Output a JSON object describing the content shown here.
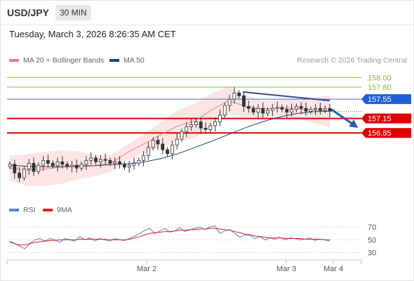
{
  "header": {
    "symbol": "USD/JPY",
    "timeframe": "30 MIN",
    "timestamp": "Tuesday, March 3, 2026 8:26:35 AM CET"
  },
  "legend_top": {
    "items": [
      {
        "label": "MA 20 + Bollinger Bands",
        "color": "#f08080"
      },
      {
        "label": "MA 50",
        "color": "#1f3f7a"
      }
    ],
    "credit": "Research © 2026 Trading Central"
  },
  "legend_bottom": {
    "items": [
      {
        "label": "RSI",
        "color": "#5b7fd6"
      },
      {
        "label": "9MA",
        "color": "#e02020"
      }
    ]
  },
  "colors": {
    "support": "#e00000",
    "resistance_blue": "#3b6fe0",
    "target_green": "#7dbb4a",
    "candle": "#333333",
    "band_fill": "#fde0e0",
    "trend": "#3a4a8a"
  },
  "chart_data": [
    {
      "type": "line",
      "title": "USD/JPY 30 MIN",
      "xlabel": "",
      "ylabel": "",
      "x_ticks": [
        "Mar 2",
        "Mar 3",
        "Mar 4"
      ],
      "ylim": [
        155.6,
        158.15
      ],
      "levels": [
        {
          "value": 158.0,
          "label": "158.00",
          "kind": "target"
        },
        {
          "value": 157.8,
          "label": "157.80",
          "kind": "target"
        },
        {
          "value": 157.55,
          "label": "157.55",
          "kind": "pivot"
        },
        {
          "value": 157.15,
          "label": "157.15",
          "kind": "support"
        },
        {
          "value": 156.85,
          "label": "156.85",
          "kind": "support"
        }
      ],
      "series": [
        {
          "name": "MA 50",
          "values": [
            156.18,
            156.16,
            156.15,
            156.15,
            156.16,
            156.17,
            156.19,
            156.21,
            156.25,
            156.32,
            156.42,
            156.55,
            156.68,
            156.82,
            156.96,
            157.08,
            157.18,
            157.25,
            157.29,
            157.3
          ]
        },
        {
          "name": "MA 20",
          "values": [
            156.12,
            156.08,
            156.1,
            156.14,
            156.18,
            156.17,
            156.22,
            156.45,
            156.63,
            156.82,
            157.0,
            157.1,
            157.33,
            157.52,
            157.4,
            157.35,
            157.37,
            157.36,
            157.32,
            157.3
          ]
        }
      ],
      "candle_closes": [
        156.2,
        156.02,
        155.92,
        156.1,
        156.22,
        156.05,
        156.18,
        156.28,
        156.22,
        156.17,
        156.25,
        156.2,
        156.15,
        156.18,
        156.12,
        156.2,
        156.28,
        156.33,
        156.25,
        156.3,
        156.28,
        156.22,
        156.25,
        156.2,
        156.14,
        156.18,
        156.22,
        156.28,
        156.38,
        156.55,
        156.7,
        156.62,
        156.5,
        156.42,
        156.6,
        156.72,
        156.88,
        156.98,
        157.02,
        157.08,
        156.95,
        156.92,
        157.0,
        157.08,
        157.22,
        157.42,
        157.55,
        157.68,
        157.62,
        157.4,
        157.36,
        157.28,
        157.36,
        157.26,
        157.32,
        157.36,
        157.38,
        157.34,
        157.28,
        157.34,
        157.4,
        157.36,
        157.3,
        157.34,
        157.36,
        157.32,
        157.36,
        157.3
      ],
      "trendline": {
        "from": 157.7,
        "to": 157.52
      },
      "projection": {
        "from": 157.34,
        "to": 156.98
      }
    },
    {
      "type": "line",
      "title": "RSI",
      "ylim": [
        25,
        78
      ],
      "y_ticks": [
        70,
        50,
        30
      ],
      "series": [
        {
          "name": "RSI",
          "values": [
            48,
            44,
            40,
            36,
            44,
            50,
            52,
            48,
            52,
            50,
            46,
            52,
            50,
            48,
            55,
            50,
            53,
            48,
            52,
            50,
            48,
            52,
            50,
            49,
            52,
            56,
            60,
            65,
            68,
            60,
            64,
            68,
            62,
            64,
            69,
            63,
            66,
            68,
            70,
            66,
            70,
            72,
            60,
            64,
            66,
            60,
            54,
            58,
            57,
            52,
            55,
            50,
            53,
            51,
            54,
            50,
            53,
            52,
            50,
            51,
            53,
            49,
            51,
            50,
            48
          ]
        },
        {
          "name": "9MA",
          "values": [
            46,
            44,
            42,
            42,
            44,
            46,
            47,
            48,
            49,
            49,
            50,
            50,
            50,
            50,
            51,
            51,
            51,
            51,
            51,
            51,
            50,
            50,
            50,
            50,
            51,
            53,
            55,
            58,
            60,
            61,
            62,
            63,
            63,
            64,
            65,
            65,
            66,
            66,
            67,
            67,
            68,
            68,
            67,
            66,
            65,
            63,
            61,
            59,
            58,
            56,
            55,
            54,
            53,
            53,
            53,
            52,
            52,
            52,
            52,
            51,
            51,
            51,
            51,
            50,
            50
          ]
        }
      ]
    }
  ]
}
